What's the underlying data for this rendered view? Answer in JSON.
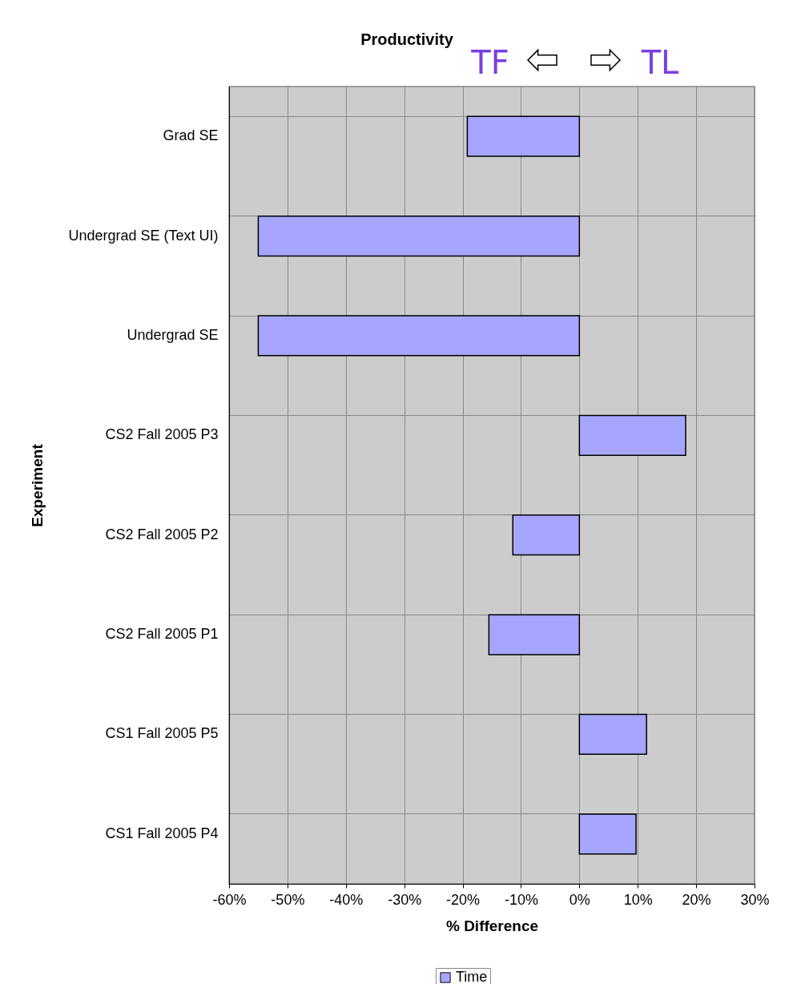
{
  "chart_data": {
    "type": "bar",
    "orientation": "horizontal",
    "title": "Productivity",
    "xlabel": "% Difference",
    "ylabel": "Experiment",
    "categories": [
      "Grad SE",
      "Undergrad SE (Text UI)",
      "Undergrad SE",
      "CS2 Fall 2005 P3",
      "CS2 Fall 2005 P2",
      "CS2 Fall 2005 P1",
      "CS1 Fall 2005 P5",
      "CS1 Fall 2005 P4"
    ],
    "series": [
      {
        "name": "Time",
        "color": "#a6a6ff",
        "values": [
          -19.2,
          -55,
          -55,
          18.2,
          -11.4,
          -15.5,
          11.5,
          9.7
        ]
      }
    ],
    "xlim": [
      -60,
      30
    ],
    "xticks": [
      {
        "value": -60,
        "label": "-60%"
      },
      {
        "value": -50,
        "label": "-50%"
      },
      {
        "value": -40,
        "label": "-40%"
      },
      {
        "value": -30,
        "label": "-30%"
      },
      {
        "value": -20,
        "label": "-20%"
      },
      {
        "value": -10,
        "label": "-10%"
      },
      {
        "value": 0,
        "label": "0%"
      },
      {
        "value": 10,
        "label": "10%"
      },
      {
        "value": 20,
        "label": "20%"
      },
      {
        "value": 30,
        "label": "30%"
      }
    ],
    "annotations": [
      "TF",
      "TL"
    ],
    "grid": true,
    "legend": "bottom"
  }
}
